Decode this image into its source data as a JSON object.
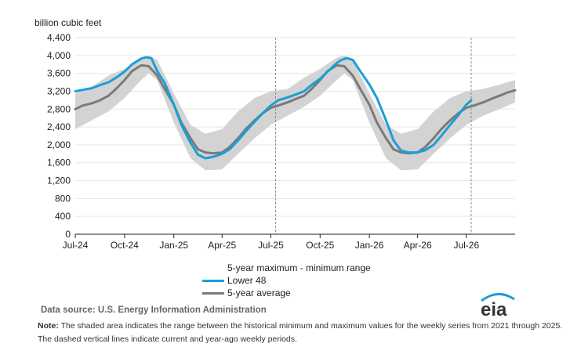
{
  "chart_data": {
    "type": "line",
    "ylabel": "billion cubic feet",
    "ylim": [
      0,
      4400
    ],
    "yticks": [
      0,
      400,
      800,
      1200,
      1600,
      2000,
      2400,
      2800,
      3200,
      3600,
      4000,
      4400
    ],
    "ytick_labels": [
      "0",
      "400",
      "800",
      "1,200",
      "1,600",
      "2,000",
      "2,400",
      "2,800",
      "3,200",
      "3,600",
      "4,000",
      "4,400"
    ],
    "xlim": [
      "2024-07-01",
      "2026-09-30"
    ],
    "xticks": [
      "2024-07-01",
      "2024-10-01",
      "2025-01-01",
      "2025-04-01",
      "2025-07-01",
      "2025-10-01",
      "2026-01-01",
      "2026-04-01",
      "2026-07-01"
    ],
    "xtick_labels": [
      "Jul-24",
      "Oct-24",
      "Jan-25",
      "Apr-25",
      "Jul-25",
      "Oct-25",
      "Jan-26",
      "Apr-26",
      "Jul-26"
    ],
    "grid": "horizontal",
    "range": {
      "name": "5-year maximum - minimum range",
      "color": "#d3d3d3",
      "x": [
        "2024-07-01",
        "2024-08-01",
        "2024-09-01",
        "2024-10-01",
        "2024-11-01",
        "2024-11-15",
        "2024-12-01",
        "2025-01-01",
        "2025-02-01",
        "2025-03-01",
        "2025-04-01",
        "2025-05-01",
        "2025-06-01",
        "2025-07-01",
        "2025-08-01",
        "2025-09-01",
        "2025-10-01",
        "2025-11-01",
        "2025-11-15",
        "2025-12-01",
        "2026-01-01",
        "2026-02-01",
        "2026-03-01",
        "2026-04-01",
        "2026-05-01",
        "2026-06-01",
        "2026-07-01",
        "2026-08-01",
        "2026-09-01",
        "2026-09-30"
      ],
      "min": [
        2350,
        2550,
        2750,
        3050,
        3450,
        3600,
        3450,
        2500,
        1700,
        1430,
        1450,
        1800,
        2150,
        2450,
        2650,
        2850,
        3100,
        3450,
        3600,
        3450,
        2500,
        1700,
        1430,
        1450,
        1800,
        2150,
        2450,
        2650,
        2800,
        2950
      ],
      "max": [
        3150,
        3300,
        3550,
        3700,
        3950,
        4000,
        3900,
        3150,
        2450,
        2250,
        2350,
        2750,
        3050,
        3200,
        3250,
        3500,
        3700,
        3950,
        4000,
        3900,
        3150,
        2450,
        2250,
        2350,
        2750,
        3050,
        3200,
        3250,
        3350,
        3450
      ]
    },
    "series": [
      {
        "name": "Lower 48",
        "color": "#1a9fd6",
        "x": [
          "2024-07-01",
          "2024-07-15",
          "2024-08-01",
          "2024-08-15",
          "2024-09-01",
          "2024-09-15",
          "2024-10-01",
          "2024-10-15",
          "2024-11-01",
          "2024-11-10",
          "2024-11-20",
          "2024-12-01",
          "2024-12-15",
          "2025-01-01",
          "2025-01-15",
          "2025-02-01",
          "2025-02-15",
          "2025-03-01",
          "2025-03-15",
          "2025-04-01",
          "2025-04-15",
          "2025-05-01",
          "2025-05-15",
          "2025-06-01",
          "2025-06-15",
          "2025-07-01",
          "2025-07-15",
          "2025-08-01",
          "2025-08-15",
          "2025-09-01",
          "2025-09-15",
          "2025-10-01",
          "2025-10-15",
          "2025-11-01",
          "2025-11-10",
          "2025-11-20",
          "2025-12-01",
          "2025-12-15",
          "2026-01-01",
          "2026-01-15",
          "2026-02-01",
          "2026-02-15",
          "2026-03-01",
          "2026-03-15",
          "2026-04-01",
          "2026-04-15",
          "2026-05-01",
          "2026-05-15",
          "2026-06-01",
          "2026-06-15",
          "2026-07-01",
          "2026-07-10"
        ],
        "values": [
          3200,
          3230,
          3270,
          3330,
          3400,
          3500,
          3640,
          3800,
          3930,
          3960,
          3940,
          3650,
          3380,
          2900,
          2450,
          2050,
          1780,
          1700,
          1730,
          1800,
          1900,
          2100,
          2300,
          2520,
          2700,
          2880,
          3000,
          3060,
          3120,
          3200,
          3340,
          3480,
          3640,
          3830,
          3900,
          3940,
          3900,
          3650,
          3350,
          3050,
          2550,
          2100,
          1870,
          1830,
          1830,
          1880,
          2000,
          2200,
          2450,
          2650,
          2900,
          3000
        ]
      },
      {
        "name": "5-year average",
        "color": "#7a7a7a",
        "x": [
          "2024-07-01",
          "2024-07-15",
          "2024-08-01",
          "2024-08-15",
          "2024-09-01",
          "2024-09-15",
          "2024-10-01",
          "2024-10-15",
          "2024-11-01",
          "2024-11-15",
          "2024-12-01",
          "2024-12-15",
          "2025-01-01",
          "2025-01-15",
          "2025-02-01",
          "2025-02-15",
          "2025-03-01",
          "2025-03-15",
          "2025-04-01",
          "2025-04-15",
          "2025-05-01",
          "2025-05-15",
          "2025-06-01",
          "2025-06-15",
          "2025-07-01",
          "2025-07-15",
          "2025-08-01",
          "2025-08-15",
          "2025-09-01",
          "2025-09-15",
          "2025-10-01",
          "2025-10-15",
          "2025-11-01",
          "2025-11-15",
          "2025-12-01",
          "2025-12-15",
          "2026-01-01",
          "2026-01-15",
          "2026-02-01",
          "2026-02-15",
          "2026-03-01",
          "2026-03-15",
          "2026-04-01",
          "2026-04-15",
          "2026-05-01",
          "2026-05-15",
          "2026-06-01",
          "2026-06-15",
          "2026-07-01",
          "2026-07-15",
          "2026-08-01",
          "2026-08-15",
          "2026-09-01",
          "2026-09-15",
          "2026-09-30"
        ],
        "values": [
          2800,
          2880,
          2930,
          2990,
          3100,
          3250,
          3450,
          3650,
          3780,
          3760,
          3550,
          3250,
          2900,
          2500,
          2150,
          1900,
          1830,
          1810,
          1830,
          1950,
          2150,
          2350,
          2550,
          2700,
          2830,
          2880,
          2950,
          3020,
          3100,
          3250,
          3450,
          3650,
          3780,
          3760,
          3550,
          3250,
          2900,
          2500,
          2150,
          1900,
          1830,
          1810,
          1830,
          1950,
          2150,
          2350,
          2550,
          2700,
          2830,
          2880,
          2950,
          3020,
          3100,
          3170,
          3220
        ]
      }
    ],
    "reference_lines": [
      "2025-07-10",
      "2026-07-10"
    ],
    "legend_position": "bottom-center",
    "legend": [
      "5-year maximum - minimum range",
      "Lower 48",
      "5-year average"
    ]
  },
  "footer": {
    "source": "Data source:  U.S. Energy Information Administration",
    "note_label": "Note:",
    "note_text": " The shaded area indicates the range between the historical minimum and maximum values for the weekly series from 2021 through 2025. The dashed vertical lines indicate current and year-ago weekly periods.",
    "logo_text": "eia"
  }
}
